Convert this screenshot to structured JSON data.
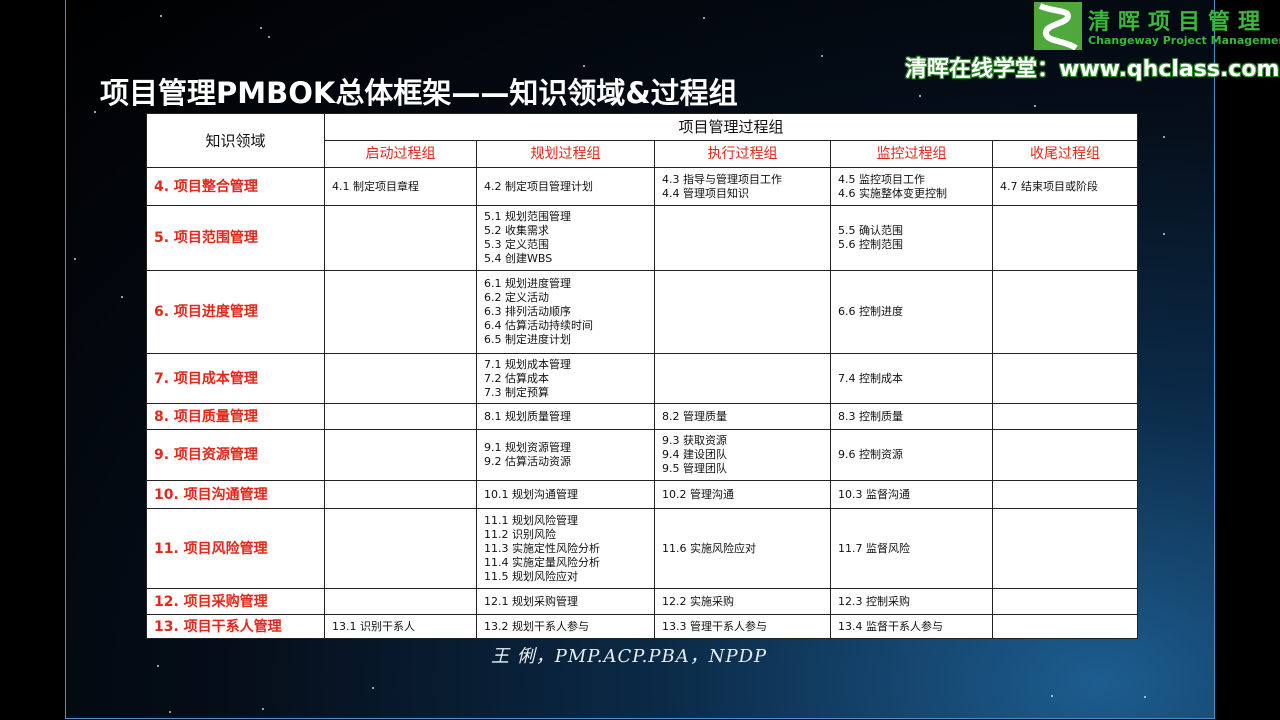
{
  "slide": {
    "title": "项目管理PMBOK总体框架——知识领域&过程组",
    "footer": "王 俐，PMP.ACP.PBA，NPDP"
  },
  "watermark": {
    "brand_cn": "清晖项目管理",
    "brand_en": "Changeway Project Management",
    "site": "清晖在线学堂：www.qhclass.com"
  },
  "table": {
    "corner_header": "知识领域",
    "group_header": "项目管理过程组",
    "groups": [
      "启动过程组",
      "规划过程组",
      "执行过程组",
      "监控过程组",
      "收尾过程组"
    ],
    "rows": [
      {
        "area": "4. 项目整合管理",
        "cells": [
          "4.1 制定项目章程",
          "4.2 制定项目管理计划",
          "4.3 指导与管理项目工作\n4.4 管理项目知识",
          "4.5 监控项目工作\n4.6 实施整体变更控制",
          "4.7 结束项目或阶段"
        ]
      },
      {
        "area": "5. 项目范围管理",
        "cells": [
          "",
          "5.1 规划范围管理\n5.2 收集需求\n5.3 定义范围\n5.4 创建WBS",
          "",
          "5.5 确认范围\n5.6 控制范围",
          ""
        ]
      },
      {
        "area": "6. 项目进度管理",
        "cells": [
          "",
          "6.1 规划进度管理\n6.2 定义活动\n6.3 排列活动顺序\n6.4 估算活动持续时间\n6.5 制定进度计划",
          "",
          "6.6 控制进度",
          ""
        ]
      },
      {
        "area": "7. 项目成本管理",
        "cells": [
          "",
          "7.1 规划成本管理\n7.2 估算成本\n7.3 制定预算",
          "",
          "7.4 控制成本",
          ""
        ]
      },
      {
        "area": "8. 项目质量管理",
        "cells": [
          "",
          "8.1 规划质量管理",
          "8.2 管理质量",
          "8.3 控制质量",
          ""
        ]
      },
      {
        "area": "9. 项目资源管理",
        "cells": [
          "",
          "9.1 规划资源管理\n9.2 估算活动资源",
          "9.3 获取资源\n9.4 建设团队\n9.5 管理团队",
          "9.6 控制资源",
          ""
        ]
      },
      {
        "area": "10. 项目沟通管理",
        "cells": [
          "",
          "10.1 规划沟通管理",
          "10.2 管理沟通",
          "10.3 监督沟通",
          ""
        ]
      },
      {
        "area": "11. 项目风险管理",
        "cells": [
          "",
          "11.1 规划风险管理\n11.2 识别风险\n11.3 实施定性风险分析\n11.4 实施定量风险分析\n11.5 规划风险应对",
          "11.6 实施风险应对",
          "11.7 监督风险",
          ""
        ]
      },
      {
        "area": "12. 项目采购管理",
        "cells": [
          "",
          "12.1 规划采购管理",
          "12.2 实施采购",
          "12.3 控制采购",
          ""
        ]
      },
      {
        "area": "13. 项目干系人管理",
        "cells": [
          "13.1 识别干系人",
          "13.2 规划干系人参与",
          "13.3 管理干系人参与",
          "13.4 监督干系人参与",
          ""
        ]
      }
    ]
  },
  "colors": {
    "area_text": "#e2281b",
    "brand_green": "#3bb83a",
    "slide_border": "#4a8fc9"
  }
}
